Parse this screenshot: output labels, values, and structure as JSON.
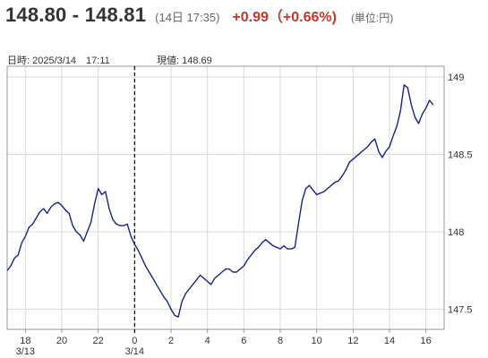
{
  "header": {
    "price_range": "148.80 - 148.81",
    "time_note": "(14日 17:35)",
    "change": "+0.99（+0.66%)",
    "unit": "(単位:円)"
  },
  "subinfo": {
    "datetime": "日時: 2025/3/14　17:11",
    "current": "現値: 148.69"
  },
  "colors": {
    "line": "#1a237e",
    "change": "#c0392b",
    "grid": "#d9d9d9",
    "frame": "#999999"
  },
  "chart_data": {
    "type": "line",
    "title": "",
    "xlabel": "",
    "ylabel": "",
    "ylim": [
      147.37,
      149.07
    ],
    "yticks": [
      147.5,
      148,
      148.5,
      149
    ],
    "ytick_labels": [
      "147.5",
      "148",
      "148.5",
      "149"
    ],
    "xlim": [
      17.0,
      41.0
    ],
    "xticks": [
      18,
      20,
      22,
      24,
      26,
      28,
      30,
      32,
      34,
      36,
      38,
      40
    ],
    "xtick_labels": [
      "18",
      "20",
      "22",
      "0",
      "2",
      "4",
      "6",
      "8",
      "10",
      "12",
      "14",
      "16"
    ],
    "date_labels": [
      {
        "x": 18,
        "label": "3/13"
      },
      {
        "x": 24,
        "label": "3/14"
      }
    ],
    "crosshair_x": 24.0,
    "grid": true,
    "series": [
      {
        "name": "",
        "points": [
          [
            17.0,
            147.75
          ],
          [
            17.2,
            147.78
          ],
          [
            17.4,
            147.83
          ],
          [
            17.6,
            147.85
          ],
          [
            17.8,
            147.93
          ],
          [
            18.0,
            147.97
          ],
          [
            18.2,
            148.03
          ],
          [
            18.4,
            148.05
          ],
          [
            18.6,
            148.09
          ],
          [
            18.8,
            148.13
          ],
          [
            19.0,
            148.15
          ],
          [
            19.2,
            148.12
          ],
          [
            19.4,
            148.16
          ],
          [
            19.6,
            148.18
          ],
          [
            19.8,
            148.19
          ],
          [
            20.0,
            148.17
          ],
          [
            20.2,
            148.14
          ],
          [
            20.4,
            148.12
          ],
          [
            20.6,
            148.04
          ],
          [
            20.8,
            148.0
          ],
          [
            21.0,
            147.98
          ],
          [
            21.2,
            147.94
          ],
          [
            21.4,
            148.0
          ],
          [
            21.6,
            148.06
          ],
          [
            21.8,
            148.18
          ],
          [
            22.0,
            148.28
          ],
          [
            22.2,
            148.24
          ],
          [
            22.4,
            148.26
          ],
          [
            22.6,
            148.15
          ],
          [
            22.8,
            148.08
          ],
          [
            23.0,
            148.05
          ],
          [
            23.2,
            148.04
          ],
          [
            23.4,
            148.04
          ],
          [
            23.6,
            148.05
          ],
          [
            23.8,
            147.97
          ],
          [
            24.0,
            147.92
          ],
          [
            24.2,
            147.88
          ],
          [
            24.4,
            147.83
          ],
          [
            24.6,
            147.78
          ],
          [
            24.8,
            147.74
          ],
          [
            25.0,
            147.7
          ],
          [
            25.2,
            147.66
          ],
          [
            25.4,
            147.62
          ],
          [
            25.6,
            147.58
          ],
          [
            25.8,
            147.55
          ],
          [
            26.0,
            147.5
          ],
          [
            26.2,
            147.46
          ],
          [
            26.4,
            147.45
          ],
          [
            26.6,
            147.55
          ],
          [
            26.8,
            147.6
          ],
          [
            27.0,
            147.63
          ],
          [
            27.2,
            147.66
          ],
          [
            27.4,
            147.69
          ],
          [
            27.6,
            147.72
          ],
          [
            27.8,
            147.7
          ],
          [
            28.0,
            147.68
          ],
          [
            28.2,
            147.66
          ],
          [
            28.4,
            147.7
          ],
          [
            28.6,
            147.72
          ],
          [
            28.8,
            147.74
          ],
          [
            29.0,
            147.76
          ],
          [
            29.2,
            147.76
          ],
          [
            29.4,
            147.74
          ],
          [
            29.6,
            147.74
          ],
          [
            29.8,
            147.76
          ],
          [
            30.0,
            147.78
          ],
          [
            30.2,
            147.82
          ],
          [
            30.4,
            147.85
          ],
          [
            30.6,
            147.88
          ],
          [
            30.8,
            147.9
          ],
          [
            31.0,
            147.93
          ],
          [
            31.2,
            147.95
          ],
          [
            31.4,
            147.93
          ],
          [
            31.6,
            147.91
          ],
          [
            31.8,
            147.9
          ],
          [
            32.0,
            147.89
          ],
          [
            32.2,
            147.91
          ],
          [
            32.4,
            147.89
          ],
          [
            32.6,
            147.89
          ],
          [
            32.8,
            147.9
          ],
          [
            33.0,
            148.05
          ],
          [
            33.2,
            148.2
          ],
          [
            33.4,
            148.28
          ],
          [
            33.6,
            148.3
          ],
          [
            33.8,
            148.27
          ],
          [
            34.0,
            148.24
          ],
          [
            34.2,
            148.25
          ],
          [
            34.4,
            148.26
          ],
          [
            34.6,
            148.28
          ],
          [
            34.8,
            148.3
          ],
          [
            35.0,
            148.32
          ],
          [
            35.2,
            148.33
          ],
          [
            35.4,
            148.36
          ],
          [
            35.6,
            148.4
          ],
          [
            35.8,
            148.45
          ],
          [
            36.0,
            148.47
          ],
          [
            36.2,
            148.49
          ],
          [
            36.4,
            148.51
          ],
          [
            36.6,
            148.53
          ],
          [
            36.8,
            148.55
          ],
          [
            37.0,
            148.58
          ],
          [
            37.2,
            148.6
          ],
          [
            37.4,
            148.52
          ],
          [
            37.6,
            148.48
          ],
          [
            37.8,
            148.52
          ],
          [
            38.0,
            148.55
          ],
          [
            38.2,
            148.62
          ],
          [
            38.4,
            148.68
          ],
          [
            38.6,
            148.78
          ],
          [
            38.8,
            148.95
          ],
          [
            39.0,
            148.93
          ],
          [
            39.2,
            148.82
          ],
          [
            39.4,
            148.74
          ],
          [
            39.6,
            148.7
          ],
          [
            39.8,
            148.76
          ],
          [
            40.0,
            148.8
          ],
          [
            40.2,
            148.85
          ],
          [
            40.4,
            148.82
          ]
        ]
      }
    ]
  }
}
